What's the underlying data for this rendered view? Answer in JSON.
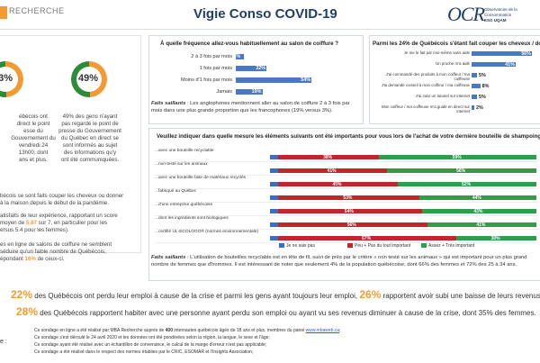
{
  "header": {
    "logo_text": "RECHERCHE",
    "title": "Vigie Conso COVID-19",
    "brand_mark": "OCR",
    "brand_sub_1": "Observatoire de la Consommation",
    "brand_sub_2": "ESG UQAM"
  },
  "left": {
    "donut1_value": "33%",
    "donut2_value": "49%",
    "donut1_text": [
      "ébécois ont",
      "direct le point",
      "esse du",
      "Gouvernement du",
      "vendredi 24",
      "13h00, dont",
      "ans et plus."
    ],
    "donut2_text": [
      "49% des gens n'ayant",
      "pas regardé le point de",
      "presse du Gouvernement",
      "du Québec en direct se",
      "sont informés au sujet",
      "des informations qu'y",
      "ont été communiquées."
    ],
    "p1": [
      "bécois se sont faits couper les cheveux ou donner",
      "à la maison depuis le début de la pandémie."
    ],
    "p2_a": [
      "atisfaits de leur expérience, rapportant un score",
      "moyen de ",
      "5.87",
      " sur 7, en particulier pour les",
      "ersus 5.4 pour les femmes)."
    ],
    "p3": [
      "es en ligne de salons de coiffure ne semblent",
      "séduire qu'un faible nombre de Québécois,",
      "épondant "
    ],
    "p3_pct": "16%",
    "p3_end": " de ceux-ci."
  },
  "freq_chart": {
    "title": "À quelle fréquence allez-vous habituellement au salon de coiffure ?",
    "categories": [
      "2 à 3 fois par mois",
      "1 fois par mois",
      "Moins d'1 fois par mois",
      "Jamais"
    ],
    "values": [
      6,
      22,
      54,
      19
    ],
    "labels": [
      "6%",
      "22%",
      "54%",
      "19%"
    ],
    "note_bold": "Faits saillants",
    "note": " : Les anglophones mentionnent aller au salon de coiffure 2 à 3 fois par mois dans une plus grande proportion que les francophones (19% versus 3%)."
  },
  "cut_chart": {
    "title": "Parmi les 24% de Québécois s'étant fait couper les cheveux / donner",
    "categories": [
      "Je me le fait par moi-même sans aide",
      "Un proche m'a aidé",
      "J'ai commandé des produits à mon coiffeur / ma coiffeuse",
      "J'ai demandé conseil à mon coiffeur / ma coiffeuse",
      "J'ai suivi un tutoriel sur internet",
      "Mon coiffeur / ma coiffeuse m'a guidé en direct sur internet"
    ],
    "values": [
      56,
      41,
      5,
      8,
      5,
      2
    ],
    "labels": [
      "56%",
      "41%",
      "5%",
      "8%",
      "5%",
      "2%"
    ]
  },
  "criteria_chart": {
    "title": "Veuillez indiquer dans quelle mesure les éléments suivants ont été importants pour vous lors de l'achat de votre dernière bouteille de shampoing. Un sha",
    "rows": [
      {
        "label": "...avec une bouteille recyclable",
        "blue": 3,
        "red": 38,
        "green": 59,
        "red_label": "38%",
        "green_label": "59%"
      },
      {
        "label": "...non testé sur les animaux",
        "blue": 3,
        "red": 41,
        "green": 56,
        "red_label": "41%",
        "green_label": "56%"
      },
      {
        "label": "...avec une bouteille faite de matériaux recyclés",
        "blue": 3,
        "red": 45,
        "green": 52,
        "red_label": "45%",
        "green_label": "52%"
      },
      {
        "label": "...fabriqué au Québec",
        "blue": 3,
        "red": 53,
        "green": 44,
        "red_label": "53%",
        "green_label": "44%"
      },
      {
        "label": "...d'une entreprise québécoise",
        "blue": 3,
        "red": 54,
        "green": 43,
        "red_label": "54%",
        "green_label": "43%"
      },
      {
        "label": "...dont les ingrédients sont biologiques",
        "blue": 3,
        "red": 56,
        "green": 41,
        "red_label": "56%",
        "green_label": "41%"
      },
      {
        "label": "...certifié UL-ECOLOGO® (normes environnementale)",
        "blue": 3,
        "red": 67,
        "green": 30,
        "red_label": "67%",
        "green_label": "30%"
      }
    ],
    "legend": [
      "Je ne sais pas",
      "Peu + Pas du tout important",
      "Assez + Très important"
    ],
    "colors": {
      "blue": "#3b6fc4",
      "red": "#c0262c",
      "green": "#2e9e4b"
    },
    "note_bold": "Faits saillants",
    "note": " : L'utilisation de bouteilles recyclable est en tête de fil, suivi de près par le critère « non testé sur les animaux » qui est important pour un plus grand nombre de femmes que d'hommes. Il est intéressant de noter que seulement 4% de la population québécoise, dont 66% des femmes et 72% des 25 à 34 ans."
  },
  "stats": {
    "s1_num": "22%",
    "s1_text": " des Québécois ont perdu leur emploi à cause de la crise et parmi les gens ayant toujours leur emploi, ",
    "s1_num2": "26%",
    "s1_text2": " rapportent avoir subi une baisse de leurs revenus.",
    "s2_num": "28%",
    "s2_text": " des Québécois rapportent habiter avec une personne ayant perdu son emploi ou ayant vu ses revenus diminuer à cause de la crise, dont 35% des femmes."
  },
  "footer": {
    "label": "e :",
    "lines": [
      "Ce sondage en ligne a été réalisé par MBA Recherche auprès de ",
      "Ce sondage s'est déroulé le 24 avril 2020 et les données ont été pondérées selon la région, la langue, le sexe et l'âge;",
      "Ce sondage ayant été réalisé avec un échantillon de convenance, le calcul de la marge d'erreur n'est pas applicable;",
      "Ce sondage a été réalisé dans le respect des normes établies par le CRIC, ESOMAR et l'Insights Association;"
    ],
    "line1_bold": "400",
    "line1_rest": " internautes québécois âgés de 18 ans et plus, membres du panel ",
    "line1_link": "www.mbaweb.ca",
    "line1_end": ";"
  }
}
